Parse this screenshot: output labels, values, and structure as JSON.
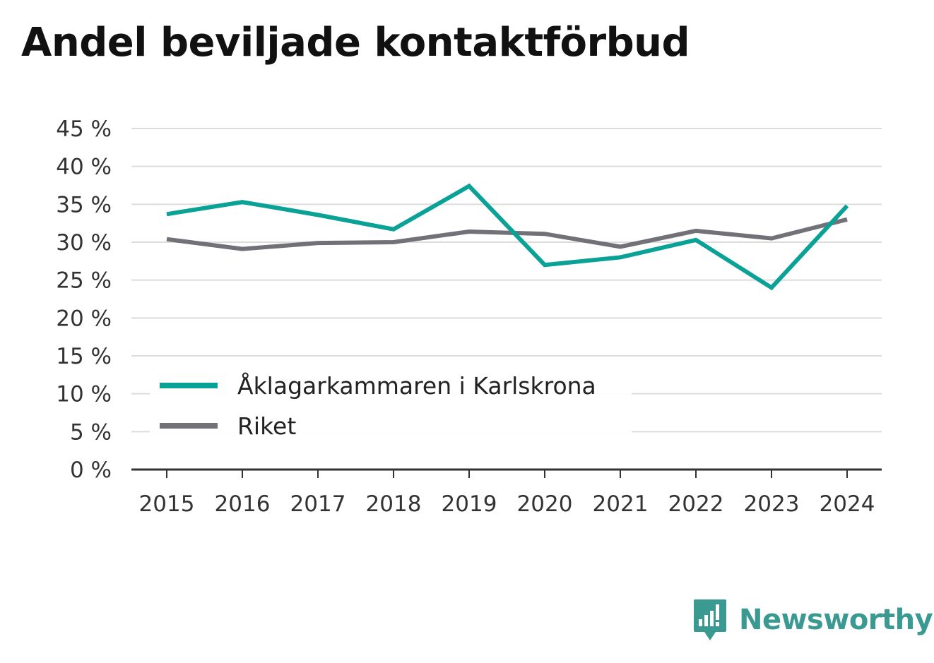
{
  "page": {
    "title": "Andel beviljade kontaktförbud"
  },
  "brand": {
    "name": "Newsworthy",
    "icon": "newsworthy-logo-icon",
    "color": "#3a9a92"
  },
  "chart_data": {
    "type": "line",
    "title": "Andel beviljade kontaktförbud",
    "xlabel": "",
    "ylabel": "",
    "categories": [
      "2015",
      "2016",
      "2017",
      "2018",
      "2019",
      "2020",
      "2021",
      "2022",
      "2023",
      "2024"
    ],
    "ylim": [
      0,
      45
    ],
    "yticks": [
      0,
      5,
      10,
      15,
      20,
      25,
      30,
      35,
      40,
      45
    ],
    "ytick_labels": [
      "0 %",
      "5 %",
      "10 %",
      "15 %",
      "20 %",
      "25 %",
      "30 %",
      "35 %",
      "40 %",
      "45 %"
    ],
    "grid": true,
    "legend_position": "bottom-left",
    "series": [
      {
        "name": "Åklagarkammaren i Karlskrona",
        "color": "#0aa197",
        "values": [
          33.7,
          35.3,
          33.6,
          31.7,
          37.4,
          27.0,
          28.0,
          30.3,
          24.0,
          34.8
        ]
      },
      {
        "name": "Riket",
        "color": "#737178",
        "values": [
          30.4,
          29.1,
          29.9,
          30.0,
          31.4,
          31.1,
          29.4,
          31.5,
          30.5,
          33.0
        ]
      }
    ]
  }
}
